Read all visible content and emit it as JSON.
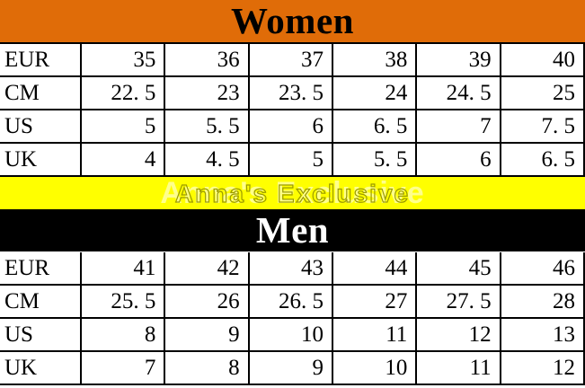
{
  "women": {
    "title": "Women",
    "rows": [
      {
        "label": "EUR",
        "values": [
          "35",
          "36",
          "37",
          "38",
          "39",
          "40"
        ]
      },
      {
        "label": "CM",
        "values": [
          "22. 5",
          "23",
          "23. 5",
          "24",
          "24. 5",
          "25"
        ]
      },
      {
        "label": "US",
        "values": [
          "5",
          "5. 5",
          "6",
          "6. 5",
          "7",
          "7. 5"
        ]
      },
      {
        "label": "UK",
        "values": [
          "4",
          "4. 5",
          "5",
          "5. 5",
          "6",
          "6. 5"
        ]
      }
    ]
  },
  "men": {
    "title": "Men",
    "rows": [
      {
        "label": "EUR",
        "values": [
          "41",
          "42",
          "43",
          "44",
          "45",
          "46"
        ]
      },
      {
        "label": "CM",
        "values": [
          "25. 5",
          "26",
          "26. 5",
          "27",
          "27. 5",
          "28"
        ]
      },
      {
        "label": "US",
        "values": [
          "8",
          "9",
          "10",
          "11",
          "12",
          "13"
        ]
      },
      {
        "label": "UK",
        "values": [
          "7",
          "8",
          "9",
          "10",
          "11",
          "12"
        ]
      }
    ]
  },
  "watermark": {
    "text": "Anna's Exclusive"
  },
  "colors": {
    "women_header_bg": "#e06c08",
    "women_header_text": "#000000",
    "men_header_bg": "#000000",
    "men_header_text": "#ffffff",
    "watermark_band_bg": "#ffff00",
    "watermark_outline": "#9a9a00",
    "table_bg": "#ffffff",
    "border": "#000000"
  },
  "chart_data": [
    {
      "type": "table",
      "title": "Women",
      "row_headers": [
        "EUR",
        "CM",
        "US",
        "UK"
      ],
      "rows": {
        "EUR": [
          35,
          36,
          37,
          38,
          39,
          40
        ],
        "CM": [
          22.5,
          23,
          23.5,
          24,
          24.5,
          25
        ],
        "US": [
          5,
          5.5,
          6,
          6.5,
          7,
          7.5
        ],
        "UK": [
          4,
          4.5,
          5,
          5.5,
          6,
          6.5
        ]
      }
    },
    {
      "type": "table",
      "title": "Men",
      "row_headers": [
        "EUR",
        "CM",
        "US",
        "UK"
      ],
      "rows": {
        "EUR": [
          41,
          42,
          43,
          44,
          45,
          46
        ],
        "CM": [
          25.5,
          26,
          26.5,
          27,
          27.5,
          28
        ],
        "US": [
          8,
          9,
          10,
          11,
          12,
          13
        ],
        "UK": [
          7,
          8,
          9,
          10,
          11,
          12
        ]
      }
    }
  ]
}
